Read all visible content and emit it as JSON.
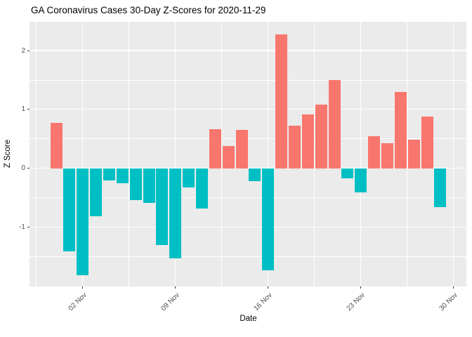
{
  "title": "GA Coronavirus Cases 30-Day Z-Scores for 2020-11-29",
  "chart_data": {
    "type": "bar",
    "title": "GA Coronavirus Cases 30-Day Z-Scores for 2020-11-29",
    "xlabel": "Date",
    "ylabel": "Z Score",
    "x": [
      "2020-10-31",
      "2020-11-01",
      "2020-11-02",
      "2020-11-03",
      "2020-11-04",
      "2020-11-05",
      "2020-11-06",
      "2020-11-07",
      "2020-11-08",
      "2020-11-09",
      "2020-11-10",
      "2020-11-11",
      "2020-11-12",
      "2020-11-13",
      "2020-11-14",
      "2020-11-15",
      "2020-11-16",
      "2020-11-17",
      "2020-11-18",
      "2020-11-19",
      "2020-11-20",
      "2020-11-21",
      "2020-11-22",
      "2020-11-23",
      "2020-11-24",
      "2020-11-25",
      "2020-11-26",
      "2020-11-27",
      "2020-11-28",
      "2020-11-29"
    ],
    "values": [
      0.77,
      -1.41,
      -1.82,
      -0.82,
      -0.21,
      -0.26,
      -0.54,
      -0.59,
      -1.3,
      -1.53,
      -0.33,
      -0.69,
      0.66,
      0.38,
      0.65,
      -0.22,
      -1.74,
      2.28,
      0.72,
      0.91,
      1.08,
      1.5,
      -0.17,
      -0.41,
      0.55,
      0.43,
      1.3,
      0.49,
      0.88,
      -0.66
    ],
    "ylim": [
      -2.01,
      2.49
    ],
    "grid": "major and minor white gridlines on grey panel",
    "legend_position": "none",
    "x_ticks": {
      "day_indices": [
        2,
        9,
        16,
        23,
        30
      ],
      "labels": [
        "02 Nov",
        "09 Nov",
        "16 Nov",
        "23 Nov",
        "30 Nov"
      ],
      "label_rotation_deg": 45
    },
    "x_minor_day_indices": [
      -1.5,
      5.5,
      12.5,
      19.5,
      26.5
    ],
    "y_ticks": {
      "values": [
        2,
        1,
        0,
        -1
      ],
      "labels": [
        "2",
        "1",
        "0",
        "-1"
      ]
    },
    "y_minor_values": [
      1.5,
      0.5,
      -0.5,
      -1.5
    ],
    "colors": {
      "positive_bar": "#F8766D",
      "negative_bar": "#00BFC4",
      "panel_background": "#EBEBEB",
      "gridline": "#FFFFFF",
      "tick_label": "#4D4D4D",
      "axis_title": "#000000",
      "tick_mark": "#333333"
    }
  }
}
